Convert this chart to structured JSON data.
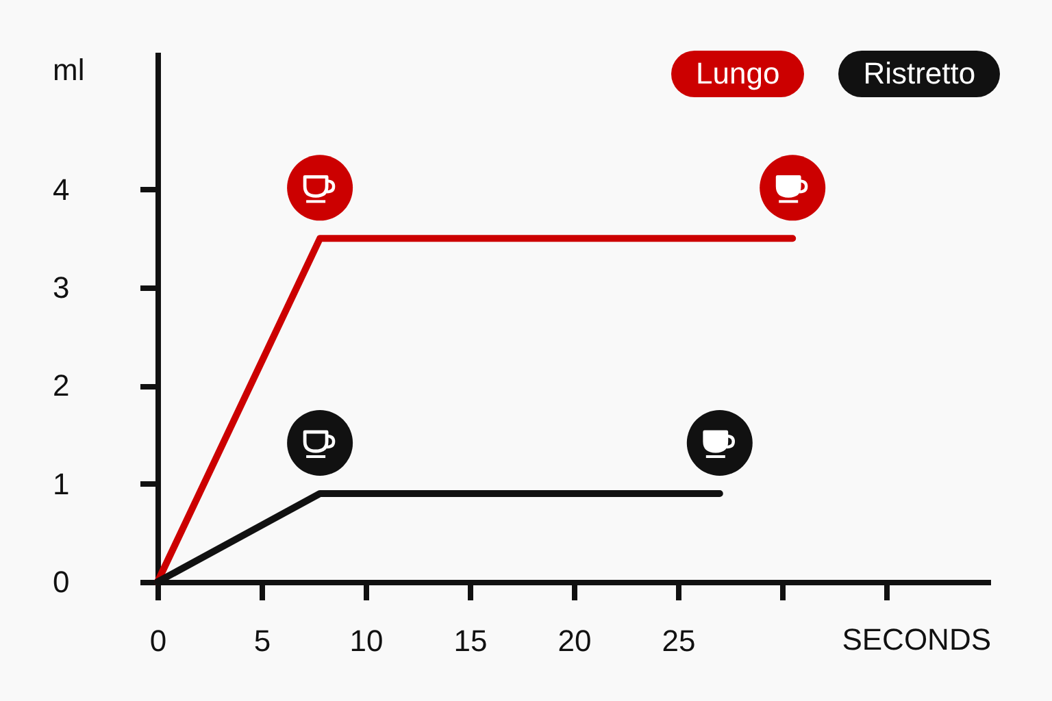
{
  "chart_data": {
    "type": "line",
    "ylabel": "ml",
    "xlabel": "SECONDS",
    "xlim": [
      0,
      40
    ],
    "xticks": [
      0,
      5,
      10,
      15,
      20,
      25,
      {
        "value": 30,
        "label": null
      },
      {
        "value": 35,
        "label": null
      }
    ],
    "ylim": [
      0,
      5.4
    ],
    "yticks": [
      0,
      1,
      2,
      3,
      4
    ],
    "series": [
      {
        "name": "Lungo",
        "color": "#cc0000",
        "x": [
          0,
          7.8,
          30.5
        ],
        "values": [
          0,
          3.5,
          3.5
        ]
      },
      {
        "name": "Ristretto",
        "color": "#111111",
        "x": [
          0,
          7.8,
          27
        ],
        "values": [
          0,
          0.9,
          0.9
        ]
      }
    ],
    "legend": "top right"
  }
}
